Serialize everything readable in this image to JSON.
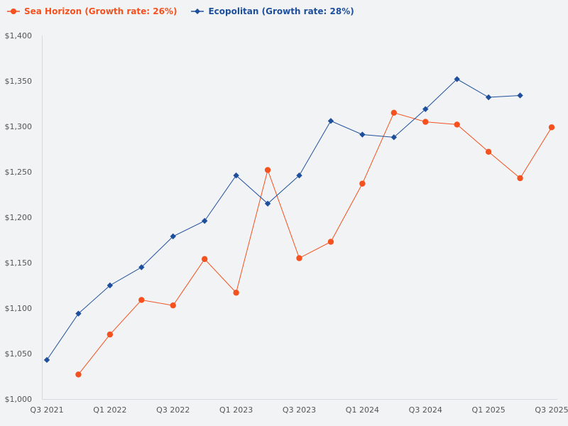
{
  "chart_data": {
    "type": "line",
    "title": "",
    "xlabel": "",
    "ylabel": "",
    "ylim": [
      1000,
      1400
    ],
    "grid": false,
    "legend_position": "top-left",
    "x_tick_labels": [
      "Q3 2021",
      "Q1 2022",
      "Q3 2022",
      "Q1 2023",
      "Q3 2023",
      "Q1 2024",
      "Q3 2024",
      "Q1 2025",
      "Q3 2025"
    ],
    "y_tick_values": [
      1000,
      1050,
      1100,
      1150,
      1200,
      1250,
      1300,
      1350,
      1400
    ],
    "y_tick_labels": [
      "$1,000",
      "$1,050",
      "$1,100",
      "$1,150",
      "$1,200",
      "$1,250",
      "$1,300",
      "$1,350",
      "$1,400"
    ],
    "categories": [
      "Q3 2021",
      "Q4 2021",
      "Q1 2022",
      "Q2 2022",
      "Q3 2022",
      "Q4 2022",
      "Q1 2023",
      "Q2 2023",
      "Q3 2023",
      "Q4 2023",
      "Q1 2024",
      "Q2 2024",
      "Q3 2024",
      "Q4 2024",
      "Q1 2025",
      "Q2 2025",
      "Q3 2025"
    ],
    "series": [
      {
        "name": "Sea Horizon (Growth rate: 26%)",
        "color": "#f4511e",
        "marker": "circle",
        "values": [
          null,
          1027,
          1071,
          1109,
          1103,
          1154,
          1117,
          1252,
          1155,
          1173,
          1237,
          1315,
          1305,
          1302,
          1272,
          1243,
          1299
        ]
      },
      {
        "name": "Ecopolitan (Growth rate: 28%)",
        "color": "#1e4f9c",
        "marker": "diamond",
        "values": [
          1043,
          1094,
          1125,
          1145,
          1179,
          1196,
          1246,
          1215,
          1246,
          1306,
          1291,
          1288,
          1319,
          1352,
          1332,
          1334,
          null
        ]
      }
    ]
  }
}
